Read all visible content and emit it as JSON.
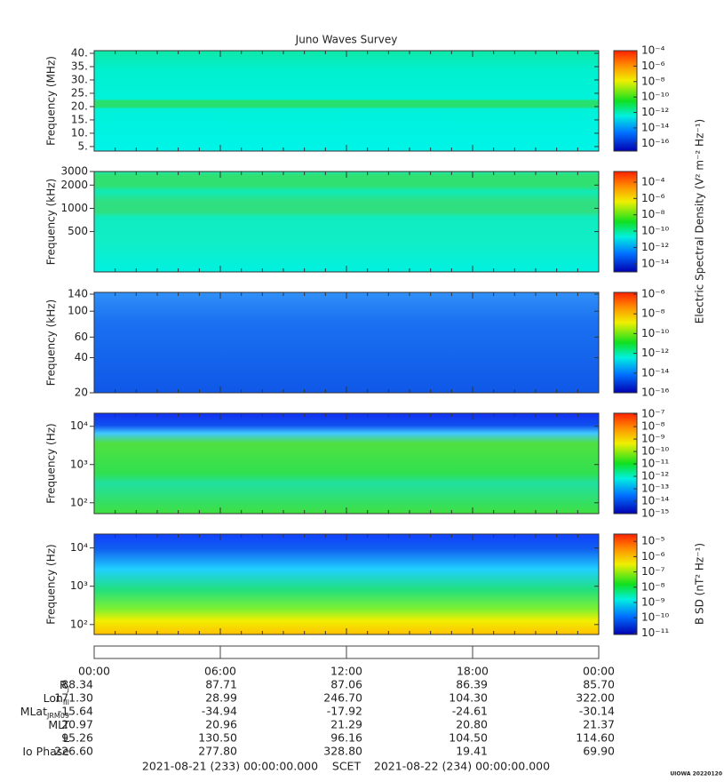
{
  "title": "Juno Waves Survey",
  "chart_data": [
    {
      "type": "heatmap",
      "ylabel": "Frequency (MHz)",
      "log": false,
      "ylim": [
        3.3,
        41
      ],
      "yticks": [
        {
          "value": 40,
          "label": "40."
        },
        {
          "value": 35,
          "label": "35."
        },
        {
          "value": 30,
          "label": "30."
        },
        {
          "value": 25,
          "label": "25."
        },
        {
          "value": 20,
          "label": "20."
        },
        {
          "value": 15,
          "label": "15."
        },
        {
          "value": 10,
          "label": "10."
        },
        {
          "value": 5,
          "label": "5."
        }
      ],
      "clim": [
        1e-17,
        0.0001
      ],
      "cticks": [
        {
          "value": 0.0001,
          "label": "10⁻⁴"
        },
        {
          "value": 1e-06,
          "label": "10⁻⁶"
        },
        {
          "value": 1e-08,
          "label": "10⁻⁸"
        },
        {
          "value": 1e-10,
          "label": "10⁻¹⁰"
        },
        {
          "value": 1e-12,
          "label": "10⁻¹²"
        },
        {
          "value": 1e-14,
          "label": "10⁻¹⁴"
        },
        {
          "value": 1e-16,
          "label": "10⁻¹⁶"
        }
      ]
    },
    {
      "type": "heatmap",
      "ylabel": "Frequency (kHz)",
      "log": true,
      "ylim": [
        150,
        3000
      ],
      "yticks": [
        3000,
        2000,
        1000,
        500
      ],
      "clim": [
        1e-15,
        0.002
      ],
      "cticks": [
        {
          "value": 0.0001,
          "label": "10⁻⁴"
        },
        {
          "value": 1e-06,
          "label": "10⁻⁶"
        },
        {
          "value": 1e-08,
          "label": "10⁻⁸"
        },
        {
          "value": 1e-10,
          "label": "10⁻¹⁰"
        },
        {
          "value": 1e-12,
          "label": "10⁻¹²"
        },
        {
          "value": 1e-14,
          "label": "10⁻¹⁴"
        }
      ]
    },
    {
      "type": "heatmap",
      "ylabel": "Frequency (kHz)",
      "log": true,
      "ylim": [
        20,
        145
      ],
      "yticks": [
        140,
        100,
        60,
        40,
        20
      ],
      "clim": [
        1e-16,
        1.5e-06
      ],
      "cticks": [
        {
          "value": 1e-06,
          "label": "10⁻⁶"
        },
        {
          "value": 1e-08,
          "label": "10⁻⁸"
        },
        {
          "value": 1e-10,
          "label": "10⁻¹⁰"
        },
        {
          "value": 1e-12,
          "label": "10⁻¹²"
        },
        {
          "value": 1e-14,
          "label": "10⁻¹⁴"
        },
        {
          "value": 1e-16,
          "label": "10⁻¹⁶"
        }
      ]
    },
    {
      "type": "heatmap",
      "ylabel": "Frequency (Hz)",
      "log": true,
      "ylim": [
        52,
        22000
      ],
      "yticks": [
        {
          "value": 10000,
          "label": "10⁴"
        },
        {
          "value": 1000,
          "label": "10³"
        },
        {
          "value": 100,
          "label": "10²"
        }
      ],
      "clim": [
        1e-15,
        1.2e-07
      ],
      "cticks": [
        {
          "value": 1e-07,
          "label": "10⁻⁷"
        },
        {
          "value": 1e-08,
          "label": "10⁻⁸"
        },
        {
          "value": 1e-09,
          "label": "10⁻⁹"
        },
        {
          "value": 1e-10,
          "label": "10⁻¹⁰"
        },
        {
          "value": 1e-11,
          "label": "10⁻¹¹"
        },
        {
          "value": 1e-12,
          "label": "10⁻¹²"
        },
        {
          "value": 1e-13,
          "label": "10⁻¹³"
        },
        {
          "value": 1e-14,
          "label": "10⁻¹⁴"
        },
        {
          "value": 1e-15,
          "label": "10⁻¹⁵"
        }
      ]
    },
    {
      "type": "heatmap",
      "ylabel": "Frequency (Hz)",
      "log": true,
      "ylim": [
        55,
        23000
      ],
      "yticks": [
        {
          "value": 10000,
          "label": "10⁴"
        },
        {
          "value": 1000,
          "label": "10³"
        },
        {
          "value": 100,
          "label": "10²"
        }
      ],
      "clim": [
        8e-12,
        3e-05
      ],
      "cticks": [
        {
          "value": 1e-05,
          "label": "10⁻⁵"
        },
        {
          "value": 1e-06,
          "label": "10⁻⁶"
        },
        {
          "value": 1e-07,
          "label": "10⁻⁷"
        },
        {
          "value": 1e-08,
          "label": "10⁻⁸"
        },
        {
          "value": 1e-09,
          "label": "10⁻⁹"
        },
        {
          "value": 1e-10,
          "label": "10⁻¹⁰"
        },
        {
          "value": 1e-11,
          "label": "10⁻¹¹"
        }
      ]
    }
  ],
  "colorbar_labels": [
    "Electric Spectral Density (V² m⁻² Hz⁻¹)",
    "B SD (nT² Hz⁻¹)"
  ],
  "ephemeris": {
    "times": [
      "00:00",
      "06:00",
      "12:00",
      "18:00",
      "00:00"
    ],
    "rows": [
      {
        "label": "R",
        "sub": "J",
        "values": [
          "88.34",
          "87.71",
          "87.06",
          "86.39",
          "85.70"
        ]
      },
      {
        "label": "Lon",
        "sub": "III",
        "values": [
          "171.30",
          "28.99",
          "246.70",
          "104.30",
          "322.00"
        ]
      },
      {
        "label": "MLat",
        "sub": "JRM09",
        "values": [
          "-15.64",
          "-34.94",
          "-17.92",
          "-24.61",
          "-30.14"
        ]
      },
      {
        "label": "MLT",
        "values": [
          "20.97",
          "20.96",
          "21.29",
          "20.80",
          "21.37"
        ]
      },
      {
        "label": "L",
        "values": [
          "95.26",
          "130.50",
          "96.16",
          "104.50",
          "114.60"
        ]
      },
      {
        "label": "Io Phase",
        "values": [
          "226.60",
          "277.80",
          "328.80",
          "19.41",
          "69.90"
        ]
      }
    ]
  },
  "footer": {
    "start": "2021-08-21 (233) 00:00:00.000",
    "scet": "SCET",
    "end": "2021-08-22 (234) 00:00:00.000",
    "credit": "UIOWA 20220120"
  }
}
